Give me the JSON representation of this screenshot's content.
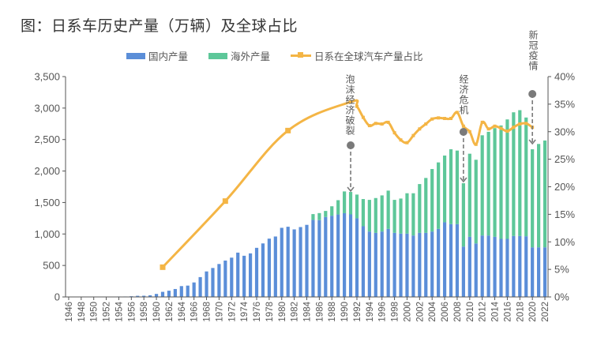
{
  "title": "图：日系车历史产量（万辆）及全球占比",
  "colors": {
    "domestic": "#5b8ed8",
    "overseas": "#5dc799",
    "share": "#f4b545",
    "annotation": "#7a7a7a",
    "axis": "#555555"
  },
  "chart_data": {
    "type": "bar+line",
    "title": "图：日系车历史产量（万辆）及全球占比",
    "legend_position": "top",
    "grid": false,
    "categories": [
      "1946",
      "1947",
      "1948",
      "1949",
      "1950",
      "1951",
      "1952",
      "1953",
      "1954",
      "1955",
      "1956",
      "1957",
      "1958",
      "1959",
      "1960",
      "1961",
      "1962",
      "1963",
      "1964",
      "1965",
      "1966",
      "1967",
      "1968",
      "1969",
      "1970",
      "1971",
      "1972",
      "1973",
      "1974",
      "1975",
      "1976",
      "1977",
      "1978",
      "1979",
      "1980",
      "1981",
      "1982",
      "1983",
      "1984",
      "1985",
      "1986",
      "1987",
      "1988",
      "1989",
      "1990",
      "1991",
      "1992",
      "1993",
      "1994",
      "1995",
      "1996",
      "1997",
      "1998",
      "1999",
      "2000",
      "2001",
      "2002",
      "2003",
      "2004",
      "2005",
      "2006",
      "2007",
      "2008",
      "2009",
      "2010",
      "2011",
      "2012",
      "2013",
      "2014",
      "2015",
      "2016",
      "2017",
      "2018",
      "2019",
      "2020",
      "2021",
      "2022"
    ],
    "x_tick_labels": [
      "1946",
      "1948",
      "1950",
      "1952",
      "1954",
      "1956",
      "1958",
      "1960",
      "1962",
      "1964",
      "1966",
      "1968",
      "1970",
      "1972",
      "1974",
      "1976",
      "1978",
      "1980",
      "1982",
      "1984",
      "1986",
      "1988",
      "1990",
      "1992",
      "1994",
      "1996",
      "1998",
      "2000",
      "2002",
      "2004",
      "2006",
      "2008",
      "2010",
      "2012",
      "2014",
      "2016",
      "2018",
      "2020",
      "2022"
    ],
    "y_left": {
      "ylim": [
        0,
        3500
      ],
      "ticks": [
        "0",
        "500",
        "1,000",
        "1,500",
        "2,000",
        "2,500",
        "3,000",
        "3,500"
      ]
    },
    "y_right": {
      "ylim": [
        0,
        40
      ],
      "ticks": [
        "0%",
        "5%",
        "10%",
        "15%",
        "20%",
        "25%",
        "30%",
        "35%",
        "40%"
      ]
    },
    "series": [
      {
        "name": "国内产量",
        "type": "stacked-bar",
        "values": [
          1,
          1,
          2,
          3,
          3,
          4,
          5,
          5,
          7,
          7,
          11,
          18,
          19,
          26,
          48,
          81,
          99,
          126,
          172,
          180,
          230,
          315,
          405,
          460,
          523,
          578,
          624,
          704,
          654,
          692,
          780,
          850,
          926,
          960,
          1098,
          1115,
          1073,
          1110,
          1145,
          1224,
          1220,
          1270,
          1290,
          1310,
          1330,
          1311,
          1249,
          1123,
          1039,
          1018,
          1039,
          1081,
          1018,
          1006,
          1006,
          976,
          1018,
          1018,
          1039,
          1081,
          1186,
          1157,
          1157,
          800,
          955,
          850,
          976,
          976,
          955,
          922,
          922,
          968,
          968,
          964,
          788,
          788,
          788
        ]
      },
      {
        "name": "海外产量",
        "type": "stacked-bar",
        "values": [
          0,
          0,
          0,
          0,
          0,
          0,
          0,
          0,
          0,
          0,
          0,
          0,
          0,
          0,
          0,
          0,
          0,
          0,
          0,
          0,
          0,
          0,
          0,
          0,
          0,
          0,
          0,
          0,
          0,
          0,
          0,
          0,
          0,
          0,
          0,
          0,
          0,
          0,
          0,
          92,
          112,
          96,
          150,
          227,
          346,
          357,
          377,
          432,
          503,
          553,
          574,
          608,
          524,
          557,
          641,
          671,
          775,
          872,
          993,
          1056,
          1060,
          1189,
          1168,
          1006,
          1320,
          1329,
          1592,
          1647,
          1727,
          1802,
          1898,
          1965,
          1999,
          1886,
          1558,
          1642,
          1697
        ]
      },
      {
        "name": "日系在全球汽车产量占比",
        "type": "line",
        "axis": "right",
        "x": [
          1961,
          1971,
          1981,
          1991,
          1992,
          1993,
          1994,
          1995,
          1996,
          1997,
          1998,
          1999,
          2000,
          2001,
          2002,
          2003,
          2004,
          2005,
          2006,
          2007,
          2008,
          2009,
          2010,
          2011,
          2012,
          2013,
          2014,
          2015,
          2016,
          2017,
          2018,
          2019,
          2020
        ],
        "values": [
          5.4,
          17.4,
          30.2,
          35.4,
          34.6,
          32.6,
          31.1,
          31.5,
          31.4,
          31.7,
          29.8,
          28.5,
          28.0,
          29.3,
          30.5,
          31.4,
          32.3,
          32.5,
          32.4,
          32.4,
          33.5,
          31.0,
          30.0,
          27.7,
          31.7,
          30.5,
          31.0,
          30.6,
          30.1,
          30.8,
          31.4,
          31.5,
          30.8
        ],
        "marker_years": [
          1961,
          1971,
          1981
        ]
      }
    ],
    "annotations": [
      {
        "year": 1991,
        "text": "泡沫经济破裂"
      },
      {
        "year": 2009,
        "text": "经济危机"
      },
      {
        "year": 2020,
        "text": "新冠疫情"
      }
    ]
  }
}
